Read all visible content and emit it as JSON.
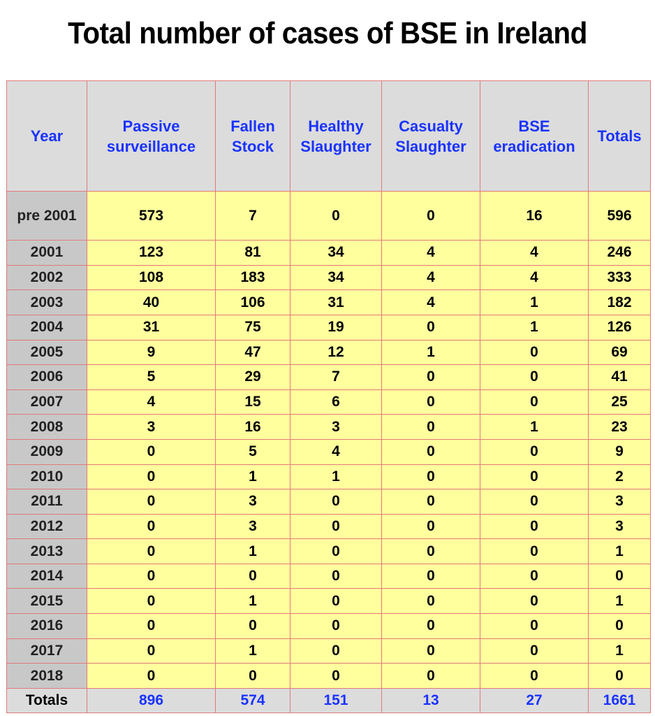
{
  "title": "Total number of cases of BSE in Ireland",
  "chart_data": {
    "type": "table",
    "title": "Total number of cases of BSE in Ireland",
    "columns": [
      "Year",
      "Passive surveillance",
      "Fallen Stock",
      "Healthy Slaughter",
      "Casualty Slaughter",
      "BSE eradication",
      "Totals"
    ],
    "rows": [
      [
        "pre 2001",
        "573",
        "7",
        "0",
        "0",
        "16",
        "596"
      ],
      [
        "2001",
        "123",
        "81",
        "34",
        "4",
        "4",
        "246"
      ],
      [
        "2002",
        "108",
        "183",
        "34",
        "4",
        "4",
        "333"
      ],
      [
        "2003",
        "40",
        "106",
        "31",
        "4",
        "1",
        "182"
      ],
      [
        "2004",
        "31",
        "75",
        "19",
        "0",
        "1",
        "126"
      ],
      [
        "2005",
        "9",
        "47",
        "12",
        "1",
        "0",
        "69"
      ],
      [
        "2006",
        "5",
        "29",
        "7",
        "0",
        "0",
        "41"
      ],
      [
        "2007",
        "4",
        "15",
        "6",
        "0",
        "0",
        "25"
      ],
      [
        "2008",
        "3",
        "16",
        "3",
        "0",
        "1",
        "23"
      ],
      [
        "2009",
        "0",
        "5",
        "4",
        "0",
        "0",
        "9"
      ],
      [
        "2010",
        "0",
        "1",
        "1",
        "0",
        "0",
        "2"
      ],
      [
        "2011",
        "0",
        "3",
        "0",
        "0",
        "0",
        "3"
      ],
      [
        "2012",
        "0",
        "3",
        "0",
        "0",
        "0",
        "3"
      ],
      [
        "2013",
        "0",
        "1",
        "0",
        "0",
        "0",
        "1"
      ],
      [
        "2014",
        "0",
        "0",
        "0",
        "0",
        "0",
        "0"
      ],
      [
        "2015",
        "0",
        "1",
        "0",
        "0",
        "0",
        "1"
      ],
      [
        "2016",
        "0",
        "0",
        "0",
        "0",
        "0",
        "0"
      ],
      [
        "2017",
        "0",
        "1",
        "0",
        "0",
        "0",
        "1"
      ],
      [
        "2018",
        "0",
        "0",
        "0",
        "0",
        "0",
        "0"
      ]
    ],
    "totals": [
      "Totals",
      "896",
      "574",
      "151",
      "13",
      "27",
      "1661"
    ]
  },
  "colors": {
    "header_text": "#1a33ff",
    "header_bg": "#dcdcdc",
    "cell_bg": "#ffff9e",
    "year_bg": "#c8c8c8",
    "grid": "#e07a7a"
  }
}
